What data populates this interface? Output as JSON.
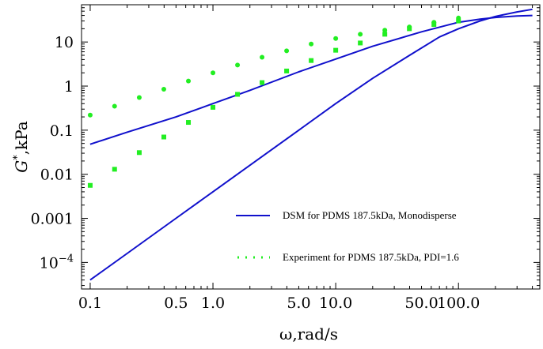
{
  "chart_data": {
    "type": "line",
    "title": "",
    "xlabel": "ω,rad/s",
    "ylabel": "G*,kPa",
    "ylabel_parts": {
      "symbol": "G",
      "superscript": "*",
      "rest": ",kPa"
    },
    "x_scale": "log",
    "y_scale": "log",
    "xlim": [
      0.085,
      460
    ],
    "ylim": [
      2.5e-05,
      70
    ],
    "x_ticks": [
      {
        "value": 0.1,
        "label": "0.1"
      },
      {
        "value": 0.5,
        "label": "0.5"
      },
      {
        "value": 1.0,
        "label": "1.0"
      },
      {
        "value": 5.0,
        "label": "5.0"
      },
      {
        "value": 10.0,
        "label": "10.0"
      },
      {
        "value": 50.0,
        "label": "50.0"
      },
      {
        "value": 100.0,
        "label": "100.0"
      }
    ],
    "y_ticks": [
      {
        "value": 0.0001,
        "base": "10",
        "exp": "−4"
      },
      {
        "value": 0.001,
        "label": "0.001"
      },
      {
        "value": 0.01,
        "label": "0.01"
      },
      {
        "value": 0.1,
        "label": "0.1"
      },
      {
        "value": 1,
        "label": "1"
      },
      {
        "value": 10,
        "label": "10"
      }
    ],
    "grid": false,
    "legend_position": "bottom-right",
    "series": [
      {
        "name": "DSM for PDMS 187.5kDa, Monodisperse",
        "style": "line",
        "color": "#1010cc",
        "lines": [
          {
            "id": "upper",
            "x": [
              0.1,
              0.2,
              0.5,
              1.0,
              2.0,
              5.0,
              10.0,
              20.0,
              50.0,
              100.0,
              150.0,
              200.0,
              300.0,
              400.0
            ],
            "y": [
              0.048,
              0.09,
              0.2,
              0.4,
              0.8,
              2.1,
              4.1,
              8.0,
              17.0,
              28.0,
              33.0,
              36.0,
              39.0,
              40.0
            ]
          },
          {
            "id": "lower",
            "x": [
              0.1,
              0.2,
              0.5,
              1.0,
              2.0,
              5.0,
              10.0,
              20.0,
              40.0,
              70.0,
              100.0,
              150.0,
              200.0,
              300.0,
              400.0
            ],
            "y": [
              4e-05,
              0.00016,
              0.001,
              0.004,
              0.016,
              0.1,
              0.4,
              1.5,
              5.0,
              13.0,
              20.0,
              30.0,
              38.0,
              48.0,
              55.0
            ]
          }
        ]
      },
      {
        "name": "Experiment for PDMS 187.5kDa, PDI=1.6",
        "style": "dotted-markers",
        "color": "#22ee22",
        "groups": [
          {
            "id": "circles",
            "marker": "circle",
            "x": [
              0.1,
              0.158,
              0.251,
              0.398,
              0.631,
              1.0,
              1.585,
              2.512,
              3.981,
              6.31,
              10.0,
              15.85,
              25.12,
              39.81,
              63.1,
              100.0
            ],
            "y": [
              0.22,
              0.35,
              0.55,
              0.85,
              1.3,
              2.0,
              3.0,
              4.5,
              6.3,
              9.0,
              12.0,
              15.0,
              18.5,
              22.0,
              28.0,
              35.0
            ]
          },
          {
            "id": "squares",
            "marker": "square",
            "x": [
              0.1,
              0.158,
              0.251,
              0.398,
              0.631,
              1.0,
              1.585,
              2.512,
              3.981,
              6.31,
              10.0,
              15.85,
              25.12,
              39.81,
              63.1,
              100.0
            ],
            "y": [
              0.0056,
              0.013,
              0.031,
              0.07,
              0.15,
              0.33,
              0.65,
              1.2,
              2.2,
              3.8,
              6.5,
              9.5,
              15.0,
              20.0,
              25.0,
              30.0
            ]
          }
        ]
      }
    ]
  }
}
